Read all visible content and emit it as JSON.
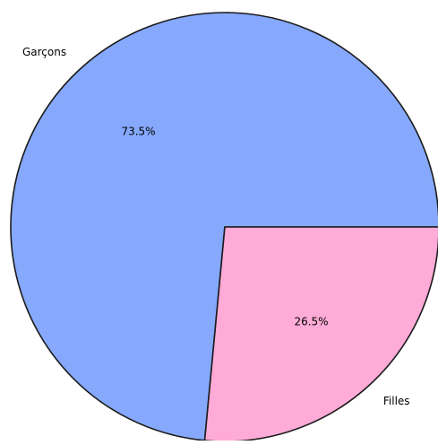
{
  "chart_data": {
    "type": "pie",
    "title": "",
    "slices": [
      {
        "label": "Garçons",
        "value": 73.5,
        "pct_label": "73.5%",
        "color": "#86a9fd"
      },
      {
        "label": "Filles",
        "value": 26.5,
        "pct_label": "26.5%",
        "color": "#feabd8"
      }
    ],
    "start_angle_deg": 0,
    "direction": "counterclockwise",
    "edge_color": "#1b1b1b",
    "legend": "none"
  }
}
